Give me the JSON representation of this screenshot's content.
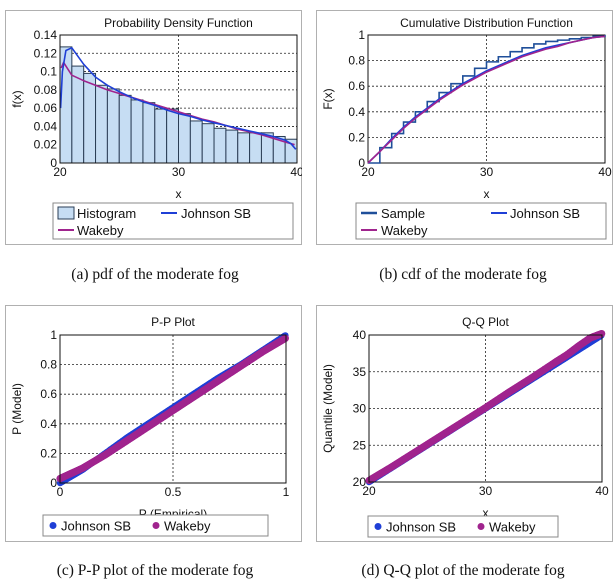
{
  "colors": {
    "histogram_fill": "#c6ddf3",
    "histogram_stroke": "#2a3d55",
    "johnson": "#1f3fd6",
    "wakeby": "#a0248e",
    "sample": "#1f4f9a",
    "frame": "#b0b0b0"
  },
  "captions": {
    "a": "(a)  pdf of the moderate fog",
    "b": "(b)  cdf of the moderate fog",
    "c": "(c)  P-P plot of the moderate fog",
    "d": "(d)  Q-Q plot of the moderate fog"
  },
  "chart_data": [
    {
      "id": "pdf",
      "type": "bar",
      "title": "Probability Density Function",
      "xlabel": "x",
      "ylabel": "f(x)",
      "xlim": [
        20,
        40
      ],
      "ylim": [
        0,
        0.14
      ],
      "xticks": [
        "20",
        "30",
        "40"
      ],
      "yticks": [
        "0",
        "0.02",
        "0.04",
        "0.06",
        "0.08",
        "0.1",
        "0.12",
        "0.14"
      ],
      "grid": true,
      "legend": [
        "Histogram",
        "Johnson SB",
        "Wakeby"
      ],
      "legend_position": "bottom",
      "bins": [
        {
          "x0": 20,
          "x1": 21,
          "value": 0.127
        },
        {
          "x0": 21,
          "x1": 22,
          "value": 0.106
        },
        {
          "x0": 22,
          "x1": 23,
          "value": 0.098
        },
        {
          "x0": 23,
          "x1": 24,
          "value": 0.085
        },
        {
          "x0": 24,
          "x1": 25,
          "value": 0.081
        },
        {
          "x0": 25,
          "x1": 26,
          "value": 0.074
        },
        {
          "x0": 26,
          "x1": 27,
          "value": 0.069
        },
        {
          "x0": 27,
          "x1": 28,
          "value": 0.066
        },
        {
          "x0": 28,
          "x1": 29,
          "value": 0.059
        },
        {
          "x0": 29,
          "x1": 30,
          "value": 0.059
        },
        {
          "x0": 30,
          "x1": 31,
          "value": 0.054
        },
        {
          "x0": 31,
          "x1": 32,
          "value": 0.046
        },
        {
          "x0": 32,
          "x1": 33,
          "value": 0.043
        },
        {
          "x0": 33,
          "x1": 34,
          "value": 0.038
        },
        {
          "x0": 34,
          "x1": 35,
          "value": 0.036
        },
        {
          "x0": 35,
          "x1": 36,
          "value": 0.033
        },
        {
          "x0": 36,
          "x1": 37,
          "value": 0.033
        },
        {
          "x0": 37,
          "x1": 38,
          "value": 0.033
        },
        {
          "x0": 38,
          "x1": 39,
          "value": 0.029
        },
        {
          "x0": 39,
          "x1": 40,
          "value": 0.026
        }
      ],
      "series": [
        {
          "name": "Johnson SB",
          "x": [
            20.05,
            20.2,
            20.5,
            21,
            22,
            23,
            24,
            25,
            26,
            27,
            28,
            29,
            30,
            31,
            32,
            33,
            34,
            35,
            36,
            37,
            38,
            39,
            39.5,
            39.9
          ],
          "y": [
            0.06,
            0.1,
            0.123,
            0.126,
            0.108,
            0.094,
            0.085,
            0.078,
            0.072,
            0.067,
            0.063,
            0.058,
            0.054,
            0.051,
            0.047,
            0.044,
            0.041,
            0.038,
            0.035,
            0.032,
            0.029,
            0.025,
            0.021,
            0.015
          ]
        },
        {
          "name": "Wakeby",
          "x": [
            20.1,
            20.3,
            20.6,
            21,
            22,
            23,
            24,
            25,
            26,
            27,
            28,
            29,
            30,
            31,
            32,
            33,
            34,
            35,
            36,
            37,
            38,
            39,
            39.8
          ],
          "y": [
            0.104,
            0.11,
            0.104,
            0.096,
            0.09,
            0.085,
            0.08,
            0.076,
            0.072,
            0.068,
            0.064,
            0.06,
            0.056,
            0.052,
            0.048,
            0.045,
            0.041,
            0.037,
            0.034,
            0.031,
            0.027,
            0.023,
            0.02
          ]
        }
      ]
    },
    {
      "id": "cdf",
      "type": "line",
      "title": "Cumulative Distribution Function",
      "xlabel": "x",
      "ylabel": "F(x)",
      "xlim": [
        20,
        40
      ],
      "ylim": [
        0,
        1
      ],
      "xticks": [
        "20",
        "30",
        "40"
      ],
      "yticks": [
        "0",
        "0.2",
        "0.4",
        "0.6",
        "0.8",
        "1"
      ],
      "grid": true,
      "legend": [
        "Sample",
        "Johnson SB",
        "Wakeby"
      ],
      "legend_position": "bottom",
      "sample_steps": {
        "x": [
          20,
          21,
          22,
          23,
          24,
          25,
          26,
          27,
          28,
          29,
          30,
          31,
          32,
          33,
          34,
          35,
          36,
          37,
          38,
          39,
          40
        ],
        "y": [
          0,
          0.12,
          0.23,
          0.32,
          0.4,
          0.48,
          0.55,
          0.62,
          0.68,
          0.74,
          0.79,
          0.83,
          0.87,
          0.9,
          0.93,
          0.95,
          0.96,
          0.97,
          0.98,
          0.99,
          1.0
        ]
      },
      "series": [
        {
          "name": "Johnson SB",
          "x": [
            20,
            21,
            22,
            23,
            24,
            25,
            26,
            27,
            28,
            29,
            30,
            31,
            32,
            33,
            34,
            35,
            36,
            37,
            38,
            39,
            40
          ],
          "y": [
            0.0,
            0.09,
            0.19,
            0.28,
            0.36,
            0.43,
            0.5,
            0.56,
            0.62,
            0.67,
            0.72,
            0.76,
            0.8,
            0.84,
            0.87,
            0.9,
            0.92,
            0.94,
            0.96,
            0.98,
            0.99
          ]
        },
        {
          "name": "Wakeby",
          "x": [
            20,
            21,
            22,
            23,
            24,
            25,
            26,
            27,
            28,
            29,
            30,
            31,
            32,
            33,
            34,
            35,
            36,
            37,
            38,
            39,
            40
          ],
          "y": [
            0.0,
            0.09,
            0.18,
            0.27,
            0.35,
            0.42,
            0.49,
            0.55,
            0.61,
            0.66,
            0.71,
            0.75,
            0.79,
            0.83,
            0.86,
            0.89,
            0.91,
            0.94,
            0.96,
            0.98,
            0.99
          ]
        }
      ]
    },
    {
      "id": "pp",
      "type": "scatter",
      "title": "P-P Plot",
      "xlabel": "P (Empirical)",
      "ylabel": "P (Model)",
      "xlim": [
        0,
        1
      ],
      "ylim": [
        0,
        1
      ],
      "xticks": [
        "0",
        "0.5",
        "1"
      ],
      "yticks": [
        "0",
        "0.2",
        "0.4",
        "0.6",
        "0.8",
        "1"
      ],
      "grid": true,
      "legend": [
        "Johnson SB",
        "Wakeby"
      ],
      "legend_position": "bottom",
      "series": [
        {
          "name": "Johnson SB",
          "x": [
            0,
            0.1,
            0.2,
            0.3,
            0.4,
            0.5,
            0.6,
            0.7,
            0.8,
            0.9,
            1.0
          ],
          "y": [
            0.0,
            0.09,
            0.2,
            0.31,
            0.41,
            0.51,
            0.61,
            0.71,
            0.8,
            0.9,
            1.0
          ]
        },
        {
          "name": "Wakeby",
          "x": [
            0,
            0.1,
            0.2,
            0.3,
            0.4,
            0.5,
            0.6,
            0.7,
            0.8,
            0.9,
            1.0
          ],
          "y": [
            0.03,
            0.1,
            0.19,
            0.29,
            0.39,
            0.49,
            0.59,
            0.69,
            0.79,
            0.89,
            0.98
          ]
        }
      ]
    },
    {
      "id": "qq",
      "type": "scatter",
      "title": "Q-Q Plot",
      "xlabel": "x",
      "ylabel": "Quantile (Model)",
      "xlim": [
        20,
        40
      ],
      "ylim": [
        20,
        40
      ],
      "xticks": [
        "20",
        "30",
        "40"
      ],
      "yticks": [
        "20",
        "25",
        "30",
        "35",
        "40"
      ],
      "grid": true,
      "legend": [
        "Johnson SB",
        "Wakeby"
      ],
      "legend_position": "bottom",
      "series": [
        {
          "name": "Johnson SB",
          "x": [
            20,
            22,
            24,
            26,
            28,
            30,
            32,
            34,
            36,
            38,
            40
          ],
          "y": [
            20,
            22,
            24,
            26,
            28,
            30,
            32,
            34,
            36,
            38,
            40
          ]
        },
        {
          "name": "Wakeby",
          "x": [
            20,
            22,
            24,
            26,
            28,
            30,
            32,
            34,
            36,
            37,
            38,
            39,
            40
          ],
          "y": [
            20.2,
            22.1,
            24.1,
            26.1,
            28.1,
            30.1,
            32.2,
            34.2,
            36.3,
            37.3,
            38.5,
            39.6,
            40.2
          ]
        }
      ]
    }
  ]
}
